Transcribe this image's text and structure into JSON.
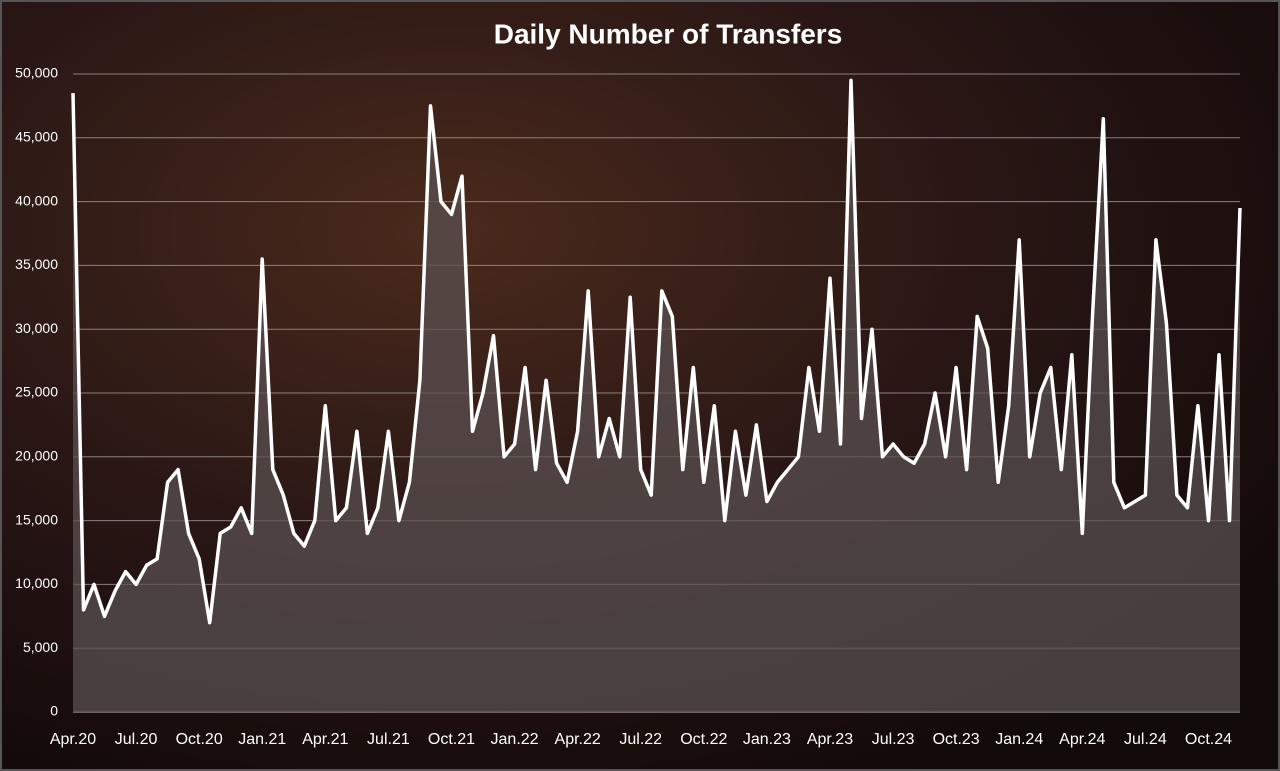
{
  "chart_data": {
    "type": "line",
    "title": "Daily Number of Transfers",
    "categories": [
      "Apr.20",
      null,
      null,
      null,
      null,
      null,
      "Jul.20",
      null,
      null,
      null,
      null,
      null,
      "Oct.20",
      null,
      null,
      null,
      null,
      null,
      "Jan.21",
      null,
      null,
      null,
      null,
      null,
      "Apr.21",
      null,
      null,
      null,
      null,
      null,
      "Jul.21",
      null,
      null,
      null,
      null,
      null,
      "Oct.21",
      null,
      null,
      null,
      null,
      null,
      "Jan.22",
      null,
      null,
      null,
      null,
      null,
      "Apr.22",
      null,
      null,
      null,
      null,
      null,
      "Jul.22",
      null,
      null,
      null,
      null,
      null,
      "Oct.22",
      null,
      null,
      null,
      null,
      null,
      "Jan.23",
      null,
      null,
      null,
      null,
      null,
      "Apr.23",
      null,
      null,
      null,
      null,
      null,
      "Jul.23",
      null,
      null,
      null,
      null,
      null,
      "Oct.23",
      null,
      null,
      null,
      null,
      null,
      "Jan.24",
      null,
      null,
      null,
      null,
      null,
      "Apr.24",
      null,
      null,
      null,
      null,
      null,
      "Jul.24",
      null,
      null,
      null,
      null,
      null,
      "Oct.24",
      null,
      null,
      null
    ],
    "series": [
      {
        "name": "Transfers",
        "color": "#ffffff",
        "values": [
          48500,
          8000,
          10000,
          7500,
          9500,
          11000,
          10000,
          11500,
          12000,
          18000,
          19000,
          14000,
          12000,
          7000,
          14000,
          14500,
          16000,
          14000,
          35500,
          19000,
          17000,
          14000,
          13000,
          15000,
          24000,
          15000,
          16000,
          22000,
          14000,
          16000,
          22000,
          15000,
          18000,
          26000,
          47500,
          40000,
          39000,
          42000,
          22000,
          25000,
          29500,
          20000,
          21000,
          27000,
          19000,
          26000,
          19500,
          18000,
          22000,
          33000,
          20000,
          23000,
          20000,
          32500,
          19000,
          17000,
          33000,
          31000,
          19000,
          27000,
          18000,
          24000,
          15000,
          22000,
          17000,
          22500,
          16500,
          18000,
          19000,
          20000,
          27000,
          22000,
          34000,
          21000,
          49500,
          23000,
          30000,
          20000,
          21000,
          20000,
          19500,
          21000,
          25000,
          20000,
          27000,
          19000,
          31000,
          28500,
          18000,
          24000,
          37000,
          20000,
          25000,
          27000,
          19000,
          28000,
          14000,
          31500,
          46500,
          18000,
          16000,
          16500,
          17000,
          37000,
          30500,
          17000,
          16000,
          24000,
          15000,
          28000,
          15000,
          39500
        ]
      }
    ],
    "ylim": [
      0,
      50000
    ],
    "yticks": [
      0,
      {
        "value": 5000,
        "label": "5,000"
      },
      {
        "value": 10000,
        "label": "10,000"
      },
      {
        "value": 15000,
        "label": "15,000"
      },
      {
        "value": 20000,
        "label": "20,000"
      },
      {
        "value": 25000,
        "label": "25,000"
      },
      {
        "value": 30000,
        "label": "30,000"
      },
      {
        "value": 35000,
        "label": "35,000"
      },
      {
        "value": 40000,
        "label": "40,000"
      },
      {
        "value": 45000,
        "label": "45,000"
      },
      {
        "value": 50000,
        "label": "50,000"
      }
    ],
    "grid": true
  }
}
